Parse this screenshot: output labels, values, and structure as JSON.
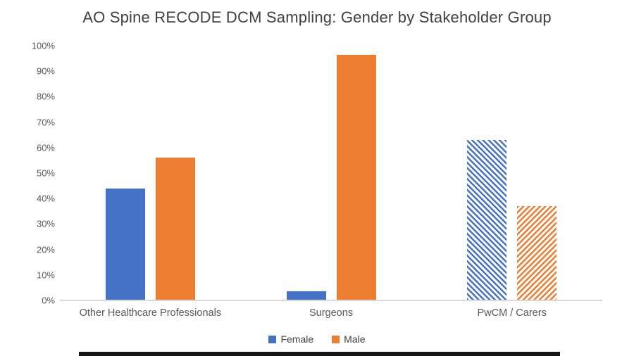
{
  "title": "AO Spine RECODE DCM Sampling: Gender by Stakeholder Group",
  "chart_data": {
    "type": "bar",
    "title": "AO Spine RECODE DCM Sampling: Gender by Stakeholder Group",
    "categories": [
      "Other Healthcare Professionals",
      "Surgeons",
      "PwCM / Carers"
    ],
    "series": [
      {
        "name": "Female",
        "color": "#4472C4",
        "values": [
          44,
          3.5,
          63
        ],
        "hatched": [
          false,
          false,
          true
        ],
        "hatch_direction": "down"
      },
      {
        "name": "Male",
        "color": "#ED7D31",
        "values": [
          56,
          96.5,
          37
        ],
        "hatched": [
          false,
          false,
          true
        ],
        "hatch_direction": "up"
      }
    ],
    "xlabel": "",
    "ylabel": "",
    "ylim": [
      0,
      100
    ],
    "ytick_step": 10,
    "ytick_labels": [
      "0%",
      "10%",
      "20%",
      "30%",
      "40%",
      "50%",
      "60%",
      "70%",
      "80%",
      "90%",
      "100%"
    ],
    "legend_position": "bottom",
    "grid": false
  },
  "legend": {
    "items": [
      {
        "label": "Female",
        "color": "#4472C4"
      },
      {
        "label": "Male",
        "color": "#ED7D31"
      }
    ]
  },
  "colors": {
    "title_text": "#404040",
    "axis_text": "#595959",
    "axis_line": "#D9D9D9",
    "background": "#FFFFFF",
    "bottom_bar": "#161616"
  }
}
